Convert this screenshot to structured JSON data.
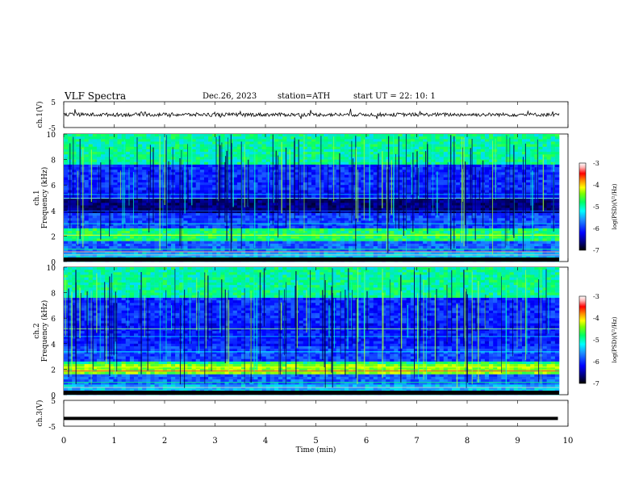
{
  "header": {
    "title": "VLF  Spectra",
    "date": "Dec.26, 2023",
    "station": "station=ATH",
    "start": "start  UT  =   22: 10: 1"
  },
  "colors": {
    "colormap": [
      "#000000",
      "#00008b",
      "#0000ff",
      "#1e6bff",
      "#00bfff",
      "#00e0e0",
      "#00ff80",
      "#7fff00",
      "#ffff00",
      "#ff8c00",
      "#ff0000",
      "#ffc0c0",
      "#ffffff"
    ],
    "trace": "#000000"
  },
  "chart_data": [
    {
      "type": "line",
      "name": "ch1-waveform",
      "ylabel": "ch.1(V)",
      "ylim": [
        -5,
        5
      ],
      "yticks": [
        "5",
        "-5"
      ],
      "xlim": [
        0,
        10
      ],
      "note_level": 0
    },
    {
      "type": "heatmap",
      "name": "ch1-spectrogram",
      "ylabel": "ch.1\nFrequency (kHz)",
      "ylabel_lines": [
        "ch.1",
        "Frequency (kHz)"
      ],
      "ylim": [
        0,
        10
      ],
      "yticks": [
        "0",
        "2",
        "4",
        "6",
        "8",
        "10"
      ],
      "xlim": [
        0,
        10
      ],
      "colorbar": {
        "label": "log(PSD)(V²/Hz)",
        "range": [
          -7,
          -3
        ],
        "ticks": [
          "-3",
          "-4",
          "-5",
          "-6",
          "-7"
        ]
      }
    },
    {
      "type": "heatmap",
      "name": "ch2-spectrogram",
      "ylabel": "ch.2\nFrequency (kHz)",
      "ylabel_lines": [
        "ch.2",
        "Frequency (kHz)"
      ],
      "ylim": [
        0,
        10
      ],
      "yticks": [
        "0",
        "2",
        "4",
        "6",
        "8",
        "10"
      ],
      "xlim": [
        0,
        10
      ],
      "colorbar": {
        "label": "log(PSD)(V²/Hz)",
        "range": [
          -7,
          -3
        ],
        "ticks": [
          "-3",
          "-4",
          "-5",
          "-6",
          "-7"
        ]
      }
    },
    {
      "type": "line",
      "name": "ch3-waveform",
      "ylabel": "ch.3(V)",
      "ylim": [
        -5,
        5
      ],
      "yticks": [
        "5",
        "-5"
      ],
      "xlim": [
        0,
        10
      ],
      "x": [
        0,
        9.8
      ],
      "y": [
        -2,
        -2
      ]
    }
  ],
  "xaxis": {
    "label": "Time  (min)",
    "ticks": [
      "0",
      "1",
      "2",
      "3",
      "4",
      "5",
      "6",
      "7",
      "8",
      "9",
      "10"
    ]
  }
}
